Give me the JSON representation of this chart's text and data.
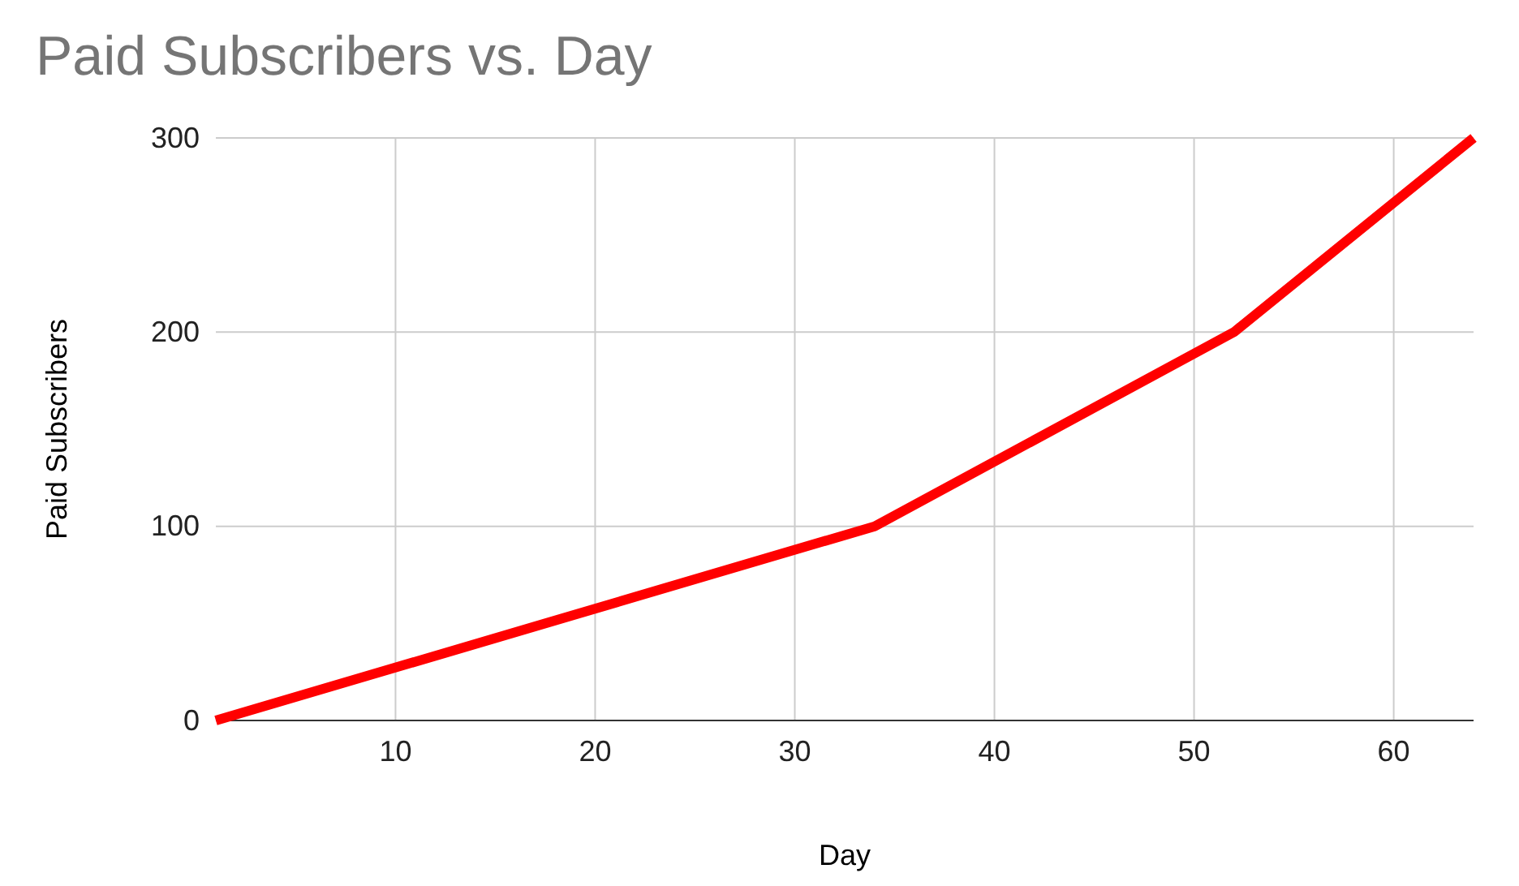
{
  "chart_data": {
    "type": "line",
    "title": "Paid Subscribers vs. Day",
    "xlabel": "Day",
    "ylabel": "Paid Subscribers",
    "x": [
      1,
      34,
      52,
      64
    ],
    "series": [
      {
        "color": "#ff0000",
        "values": [
          0,
          100,
          200,
          300
        ]
      }
    ],
    "xlim": [
      1,
      64
    ],
    "xticks": [
      10,
      20,
      30,
      40,
      50,
      60
    ],
    "ylim": [
      0,
      300
    ],
    "yticks": [
      0,
      100,
      200,
      300
    ],
    "grid": true,
    "marker": "none",
    "line_style": "solid"
  }
}
